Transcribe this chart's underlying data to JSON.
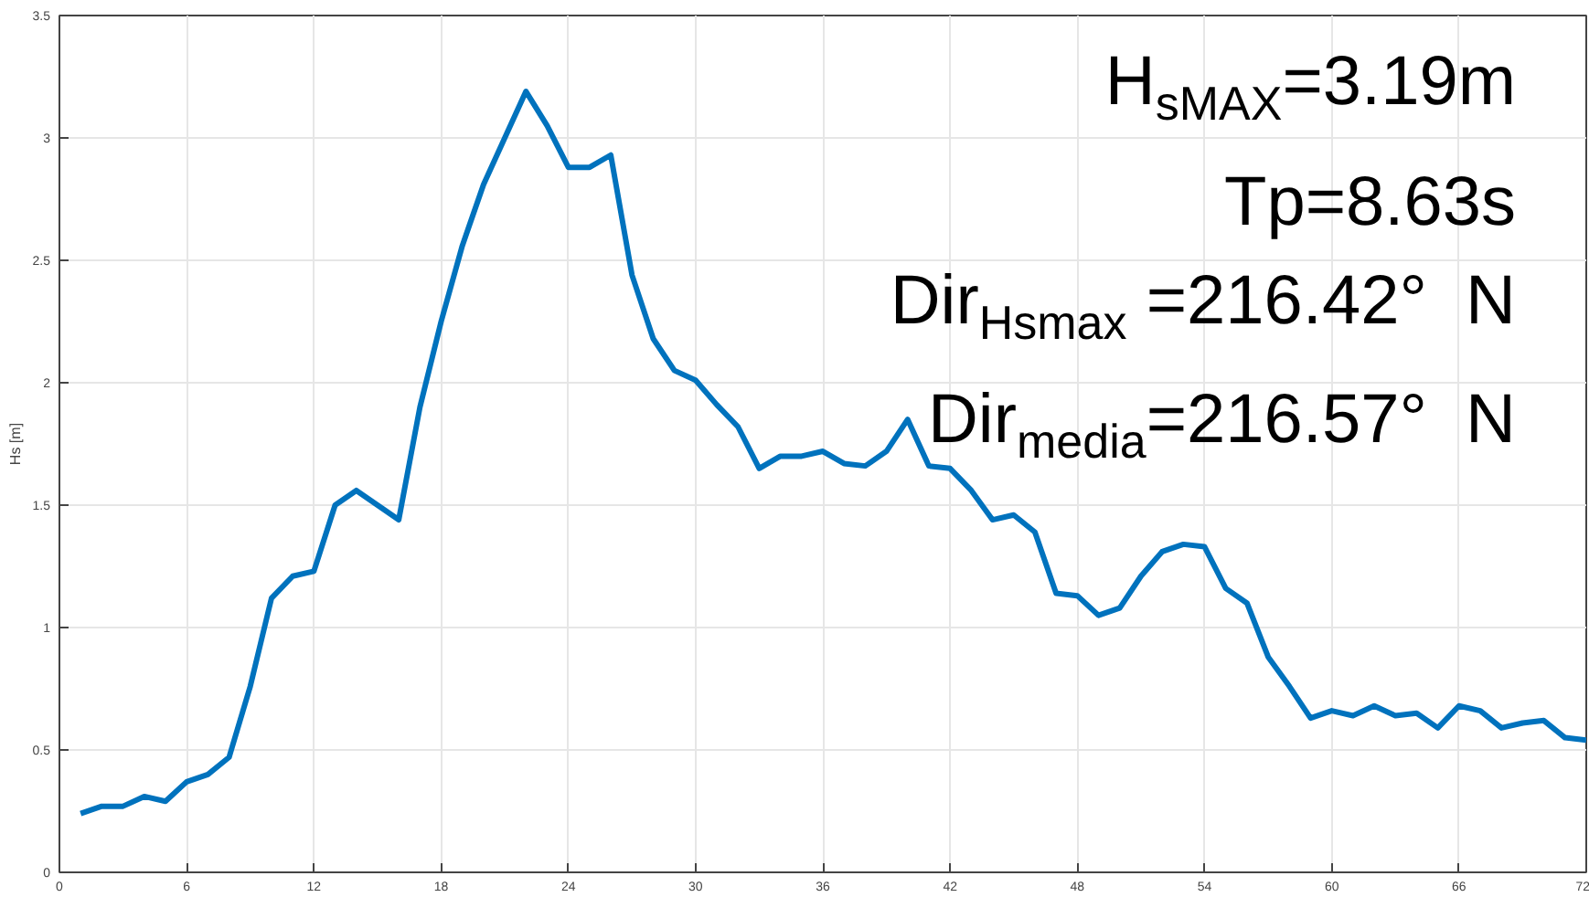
{
  "chart_data": {
    "type": "line",
    "ylabel": "Hs [m]",
    "x": [
      1,
      2,
      3,
      4,
      5,
      6,
      7,
      8,
      9,
      10,
      11,
      12,
      13,
      14,
      15,
      16,
      17,
      18,
      19,
      20,
      21,
      22,
      23,
      24,
      25,
      26,
      27,
      28,
      29,
      30,
      31,
      32,
      33,
      34,
      35,
      36,
      37,
      38,
      39,
      40,
      41,
      42,
      43,
      44,
      45,
      46,
      47,
      48,
      49,
      50,
      51,
      52,
      53,
      54,
      55,
      56,
      57,
      58,
      59,
      60,
      61,
      62,
      63,
      64,
      65,
      66,
      67,
      68,
      69,
      70,
      71,
      72
    ],
    "series": [
      {
        "color": "#0072bd",
        "values": [
          0.24,
          0.27,
          0.27,
          0.31,
          0.29,
          0.37,
          0.4,
          0.47,
          0.76,
          1.12,
          1.21,
          1.23,
          1.5,
          1.56,
          1.5,
          1.44,
          1.9,
          2.25,
          2.56,
          2.81,
          3.0,
          3.19,
          3.05,
          2.88,
          2.88,
          2.93,
          2.44,
          2.18,
          2.05,
          2.01,
          1.91,
          1.82,
          1.65,
          1.7,
          1.7,
          1.72,
          1.67,
          1.66,
          1.72,
          1.85,
          1.66,
          1.65,
          1.56,
          1.44,
          1.46,
          1.39,
          1.14,
          1.13,
          1.05,
          1.08,
          1.21,
          1.31,
          1.34,
          1.33,
          1.16,
          1.1,
          0.88,
          0.76,
          0.63,
          0.66,
          0.64,
          0.68,
          0.64,
          0.65,
          0.59,
          0.68,
          0.66,
          0.59,
          0.61,
          0.62,
          0.55,
          0.54
        ]
      }
    ],
    "xlim": [
      0,
      72
    ],
    "ylim": [
      0,
      3.5
    ],
    "xticks": [
      0,
      6,
      12,
      18,
      24,
      30,
      36,
      42,
      48,
      54,
      60,
      66,
      72
    ],
    "yticks": [
      0,
      0.5,
      1,
      1.5,
      2,
      2.5,
      3,
      3.5
    ],
    "grid": true,
    "line_style": "solid",
    "marker": "none",
    "annotations": [
      "H$_{sMAX}$=3.19m",
      "Tp=8.63s",
      "Dir$_{Hsmax}$ =216.42°  N",
      "Dir$_{media}$=216.57°  N"
    ]
  }
}
